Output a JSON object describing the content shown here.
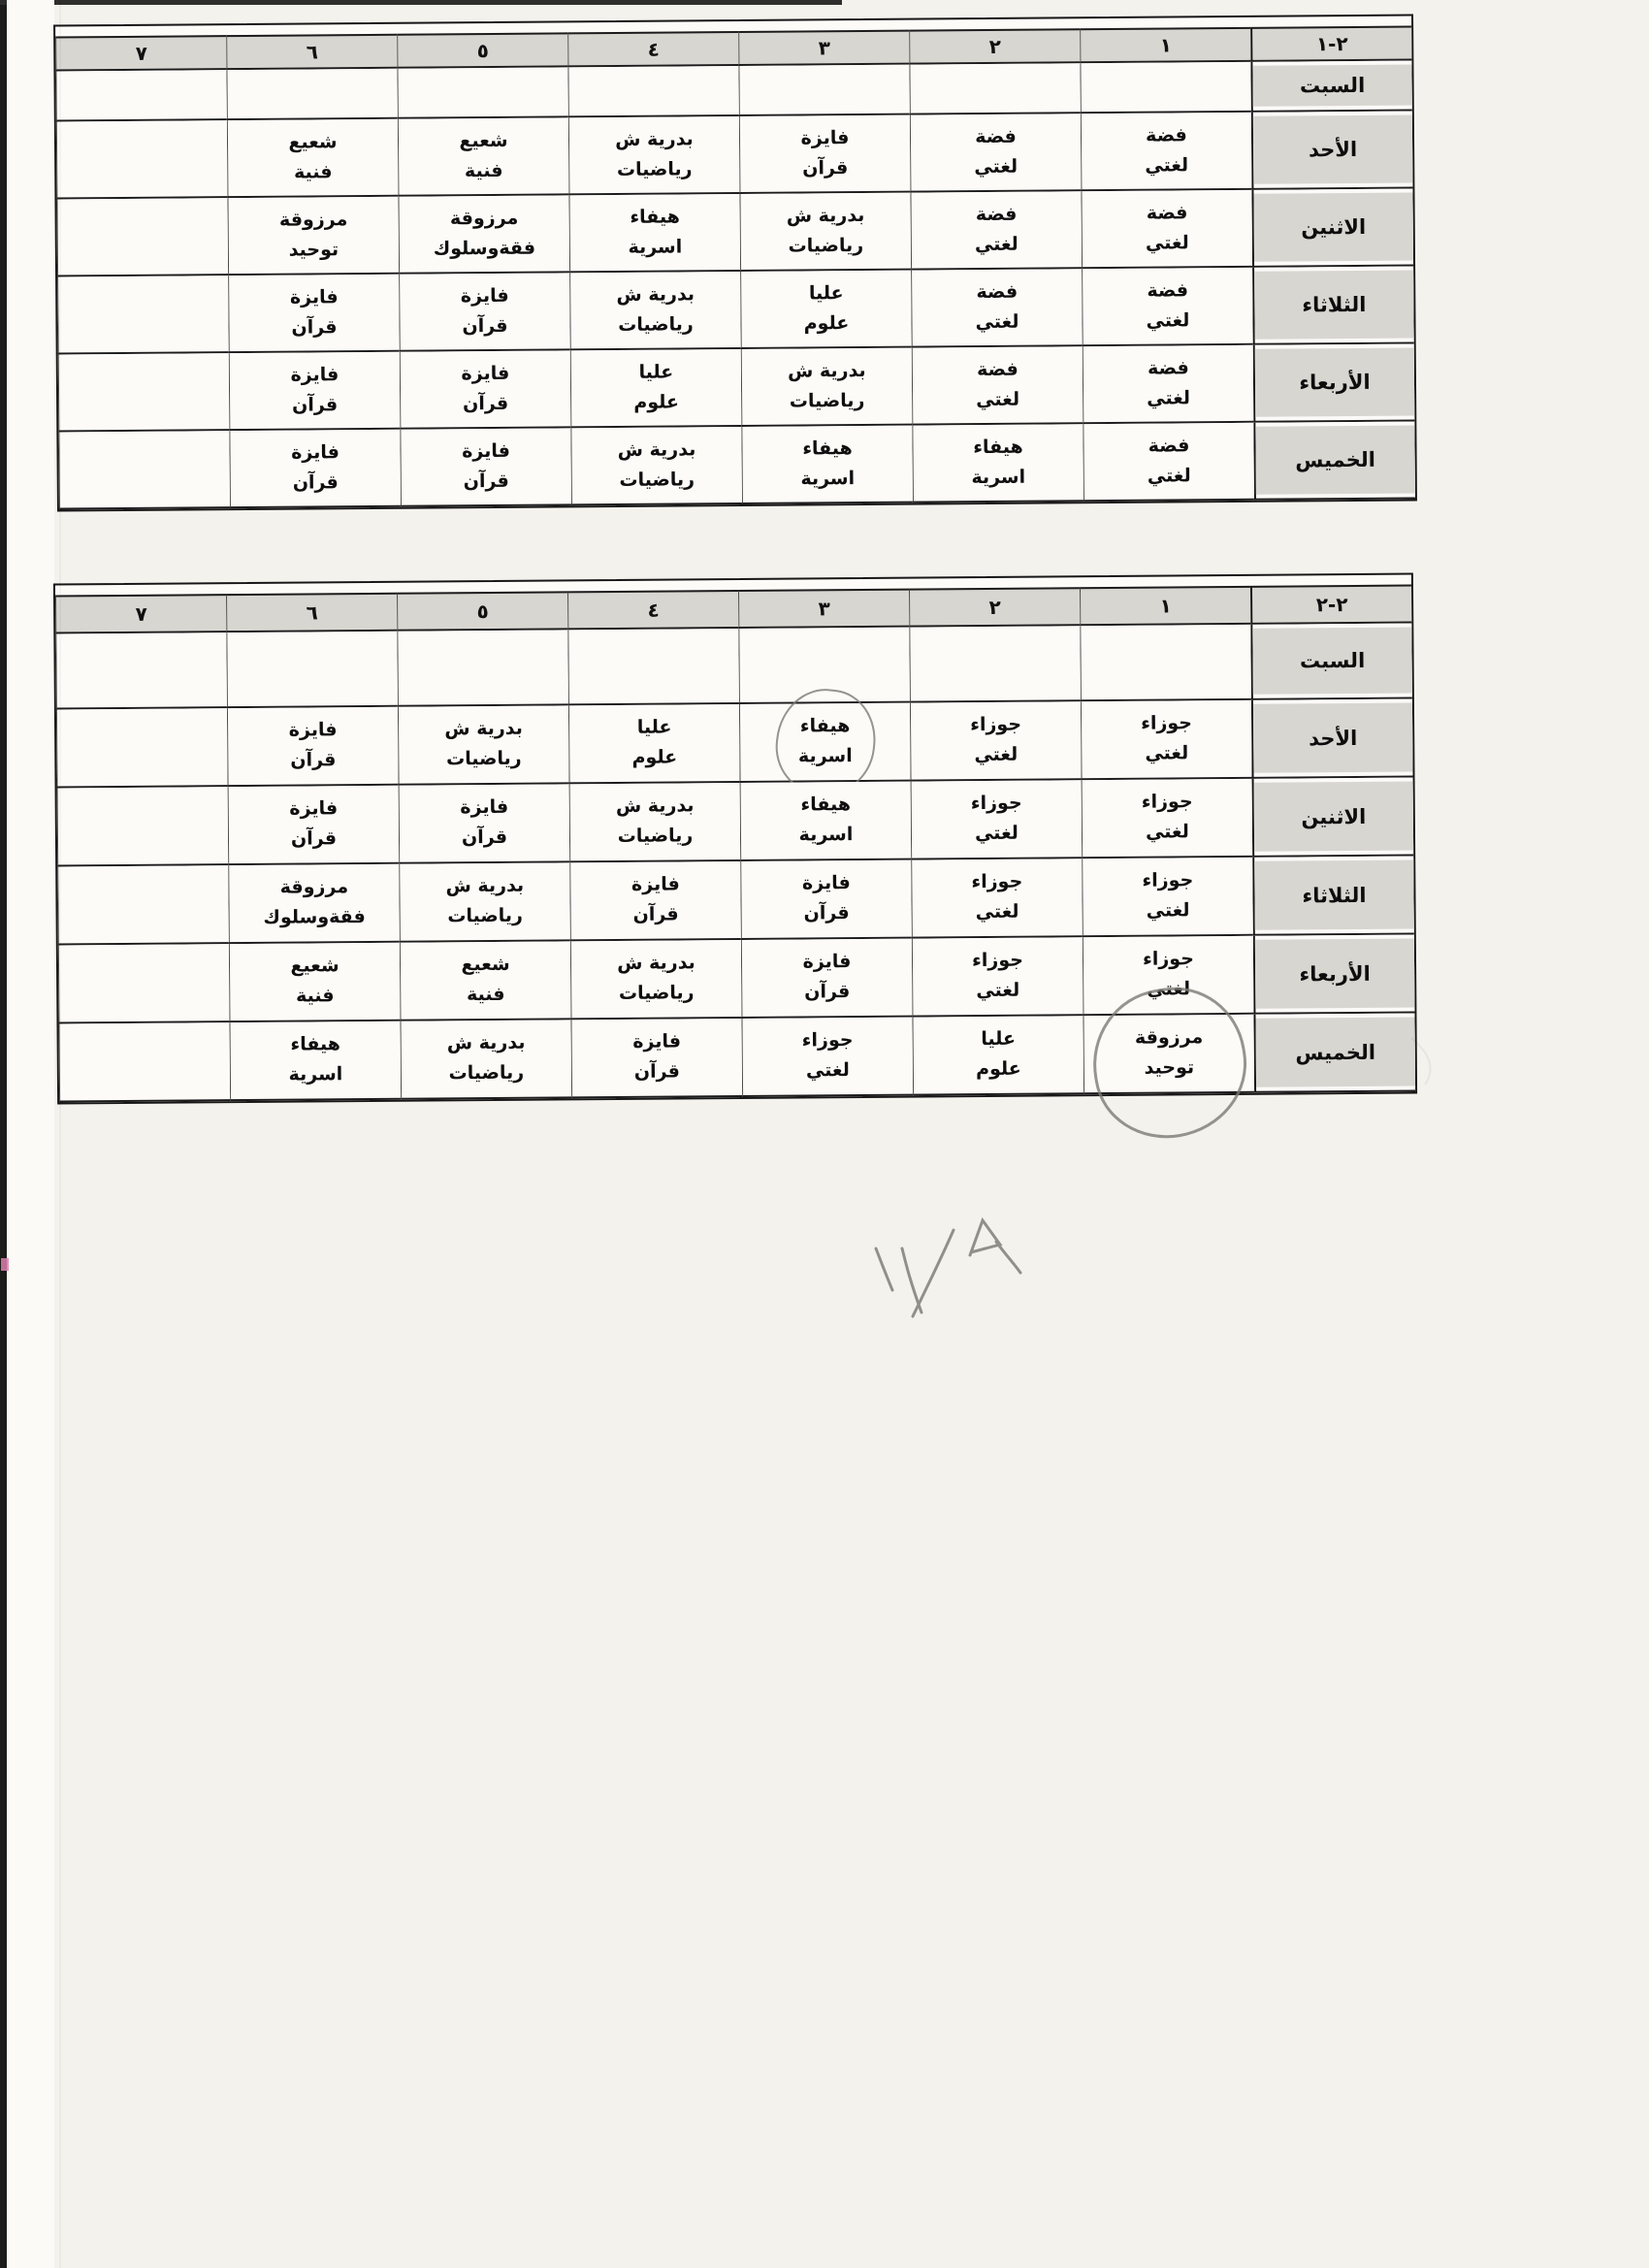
{
  "tables": [
    {
      "class_label": "١-٢",
      "periods": [
        "١",
        "٢",
        "٣",
        "٤",
        "٥",
        "٦",
        "٧"
      ],
      "rows": [
        {
          "day": "السبت",
          "cells": [
            null,
            null,
            null,
            null,
            null,
            null,
            null
          ]
        },
        {
          "day": "الأحد",
          "cells": [
            {
              "teacher": "فضة",
              "subject": "لغتي"
            },
            {
              "teacher": "فضة",
              "subject": "لغتي"
            },
            {
              "teacher": "فايزة",
              "subject": "قرآن"
            },
            {
              "teacher": "بدرية ش",
              "subject": "رياضيات"
            },
            {
              "teacher": "شعيع",
              "subject": "فنية"
            },
            {
              "teacher": "شعيع",
              "subject": "فنية"
            },
            null
          ]
        },
        {
          "day": "الاثنين",
          "cells": [
            {
              "teacher": "فضة",
              "subject": "لغتي"
            },
            {
              "teacher": "فضة",
              "subject": "لغتي"
            },
            {
              "teacher": "بدرية ش",
              "subject": "رياضيات"
            },
            {
              "teacher": "هيفاء",
              "subject": "اسرية"
            },
            {
              "teacher": "مرزوقة",
              "subject": "فقةوسلوك"
            },
            {
              "teacher": "مرزوقة",
              "subject": "توحيد"
            },
            null
          ]
        },
        {
          "day": "الثلاثاء",
          "cells": [
            {
              "teacher": "فضة",
              "subject": "لغتي"
            },
            {
              "teacher": "فضة",
              "subject": "لغتي"
            },
            {
              "teacher": "عليا",
              "subject": "علوم"
            },
            {
              "teacher": "بدرية ش",
              "subject": "رياضيات"
            },
            {
              "teacher": "فايزة",
              "subject": "قرآن"
            },
            {
              "teacher": "فايزة",
              "subject": "قرآن"
            },
            null
          ]
        },
        {
          "day": "الأربعاء",
          "cells": [
            {
              "teacher": "فضة",
              "subject": "لغتي"
            },
            {
              "teacher": "فضة",
              "subject": "لغتي"
            },
            {
              "teacher": "بدرية ش",
              "subject": "رياضيات"
            },
            {
              "teacher": "عليا",
              "subject": "علوم"
            },
            {
              "teacher": "فايزة",
              "subject": "قرآن"
            },
            {
              "teacher": "فايزة",
              "subject": "قرآن"
            },
            null
          ]
        },
        {
          "day": "الخميس",
          "cells": [
            {
              "teacher": "فضة",
              "subject": "لغتي"
            },
            {
              "teacher": "هيفاء",
              "subject": "اسرية"
            },
            {
              "teacher": "هيفاء",
              "subject": "اسرية"
            },
            {
              "teacher": "بدرية ش",
              "subject": "رياضيات"
            },
            {
              "teacher": "فايزة",
              "subject": "قرآن"
            },
            {
              "teacher": "فايزة",
              "subject": "قرآن"
            },
            null
          ]
        }
      ]
    },
    {
      "class_label": "٢-٢",
      "periods": [
        "١",
        "٢",
        "٣",
        "٤",
        "٥",
        "٦",
        "٧"
      ],
      "rows": [
        {
          "day": "السبت",
          "cells": [
            null,
            null,
            null,
            null,
            null,
            null,
            null
          ]
        },
        {
          "day": "الأحد",
          "cells": [
            {
              "teacher": "جوزاء",
              "subject": "لغتي"
            },
            {
              "teacher": "جوزاء",
              "subject": "لغتي"
            },
            {
              "teacher": "هيفاء",
              "subject": "اسرية",
              "circled": "small"
            },
            {
              "teacher": "عليا",
              "subject": "علوم"
            },
            {
              "teacher": "بدرية ش",
              "subject": "رياضيات"
            },
            {
              "teacher": "فايزة",
              "subject": "قرآن"
            },
            null
          ]
        },
        {
          "day": "الاثنين",
          "cells": [
            {
              "teacher": "جوزاء",
              "subject": "لغتي"
            },
            {
              "teacher": "جوزاء",
              "subject": "لغتي"
            },
            {
              "teacher": "هيفاء",
              "subject": "اسرية"
            },
            {
              "teacher": "بدرية ش",
              "subject": "رياضيات"
            },
            {
              "teacher": "فايزة",
              "subject": "قرآن"
            },
            {
              "teacher": "فايزة",
              "subject": "قرآن"
            },
            null
          ]
        },
        {
          "day": "الثلاثاء",
          "cells": [
            {
              "teacher": "جوزاء",
              "subject": "لغتي"
            },
            {
              "teacher": "جوزاء",
              "subject": "لغتي"
            },
            {
              "teacher": "فايزة",
              "subject": "قرآن"
            },
            {
              "teacher": "فايزة",
              "subject": "قرآن"
            },
            {
              "teacher": "بدرية ش",
              "subject": "رياضيات"
            },
            {
              "teacher": "مرزوقة",
              "subject": "فقةوسلوك"
            },
            null
          ]
        },
        {
          "day": "الأربعاء",
          "cells": [
            {
              "teacher": "جوزاء",
              "subject": "لغتي"
            },
            {
              "teacher": "جوزاء",
              "subject": "لغتي"
            },
            {
              "teacher": "فايزة",
              "subject": "قرآن"
            },
            {
              "teacher": "بدرية ش",
              "subject": "رياضيات"
            },
            {
              "teacher": "شعيع",
              "subject": "فنية"
            },
            {
              "teacher": "شعيع",
              "subject": "فنية"
            },
            null
          ]
        },
        {
          "day": "الخميس",
          "cells": [
            {
              "teacher": "مرزوقة",
              "subject": "توحيد",
              "circled": "large"
            },
            {
              "teacher": "عليا",
              "subject": "علوم"
            },
            {
              "teacher": "جوزاء",
              "subject": "لغتي"
            },
            {
              "teacher": "فايزة",
              "subject": "قرآن"
            },
            {
              "teacher": "بدرية ش",
              "subject": "رياضيات"
            },
            {
              "teacher": "هيفاء",
              "subject": "اسرية"
            },
            null
          ]
        }
      ]
    }
  ],
  "annotations": {
    "handwritten_mark": "١٧/٩",
    "pencil_circles": [
      {
        "table": "٢-٢",
        "day": "الأحد",
        "period": "٣",
        "content": "هيفاء اسرية"
      },
      {
        "table": "٢-٢",
        "day": "الخميس",
        "period": "١",
        "content": "مرزوقة توحيد"
      }
    ]
  },
  "colors": {
    "paper": "#f4f2ed",
    "header_gray": "#d8d6d1",
    "line_black": "#1c1c1c",
    "pencil_gray": "#7f7f7a"
  }
}
